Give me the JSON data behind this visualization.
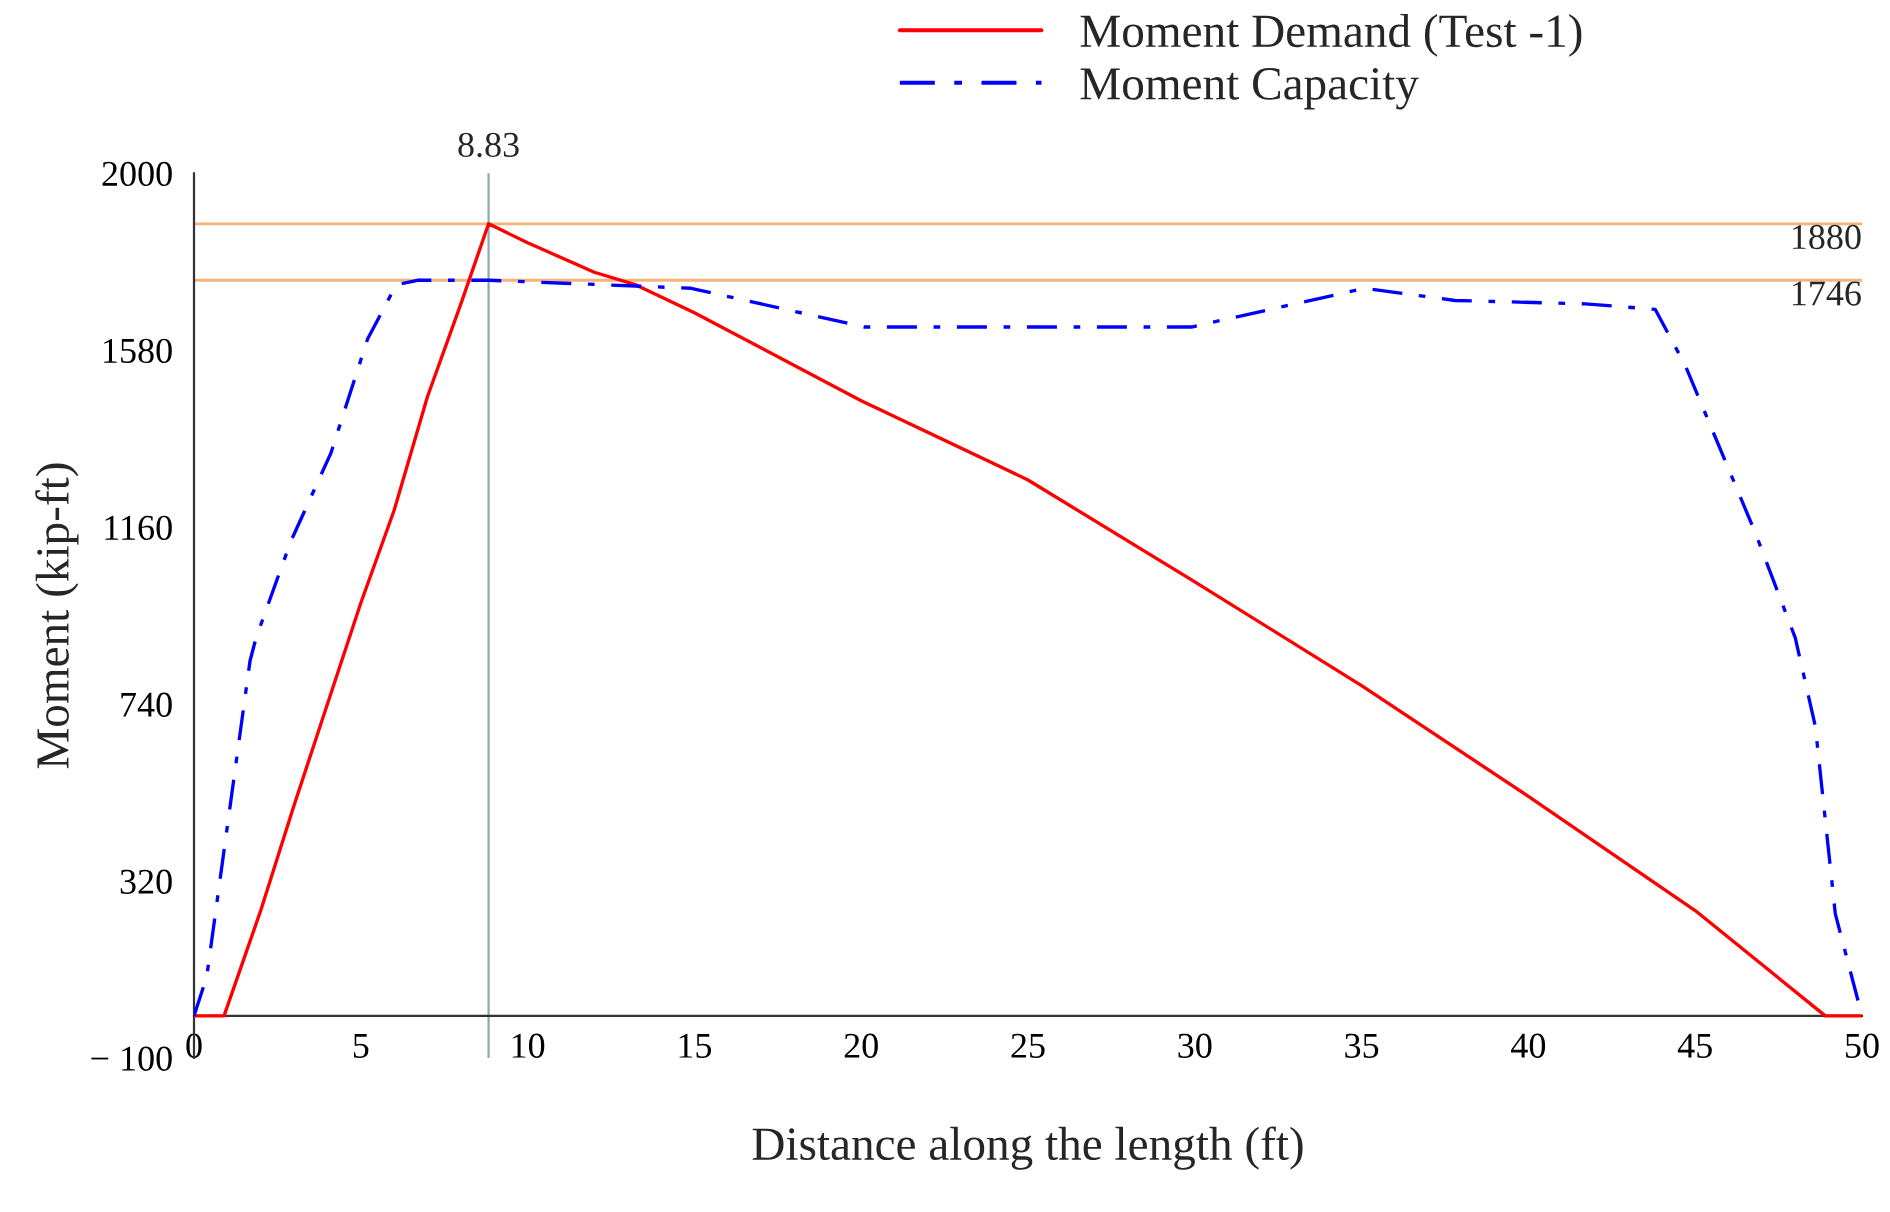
{
  "chart_data": {
    "type": "line",
    "xlabel": "Distance along the length (ft)",
    "ylabel": "Moment (kip-ft)",
    "xlim": [
      0,
      50
    ],
    "xticks": [
      0,
      5,
      10,
      15,
      20,
      25,
      30,
      35,
      40,
      45,
      50
    ],
    "ylim": [
      -100,
      2000
    ],
    "yticks": [
      {
        "value": -100,
        "label": "− 100"
      },
      320,
      740,
      1160,
      1580,
      2000
    ],
    "grid": false,
    "legend": "top right",
    "series": [
      {
        "name": "Moment Demand (Test -1)",
        "color": "#ff0000",
        "line_style": "solid",
        "x": [
          0,
          0.9,
          2,
          3,
          4,
          5,
          6,
          7,
          8,
          8.83,
          10,
          12,
          13.25,
          15,
          20,
          25,
          30,
          35,
          40,
          45,
          48.9,
          50
        ],
        "values": [
          0,
          0,
          250,
          500,
          740,
          980,
          1200,
          1470,
          1690,
          1880,
          1835,
          1765,
          1735,
          1669,
          1460,
          1272,
          1030,
          784,
          521,
          250,
          0,
          0
        ]
      },
      {
        "name": "Moment Capacity",
        "color": "#0000ff",
        "line_style": "dashdot",
        "x": [
          0,
          0.38,
          1.68,
          1.86,
          2.9,
          4.1,
          5.2,
          6.06,
          6.7,
          8.83,
          14.9,
          20.1,
          29.9,
          35.1,
          37.8,
          41.7,
          43.8,
          44.7,
          46.8,
          48,
          48.6,
          49.2,
          50
        ],
        "values": [
          0,
          92,
          843,
          897,
          1126,
          1335,
          1606,
          1735,
          1746,
          1746,
          1727,
          1635,
          1635,
          1727,
          1698,
          1690,
          1677,
          1544,
          1147,
          897,
          688,
          242,
          0
        ]
      }
    ],
    "ref_lines": [
      {
        "axis": "y",
        "value": 1880,
        "label": "1880",
        "color": "#f5b27a",
        "line_style": "solid"
      },
      {
        "axis": "y",
        "value": 1746,
        "label": "1746",
        "color": "#f5b27a",
        "line_style": "solid"
      },
      {
        "axis": "x",
        "value": 8.83,
        "label": "8.83",
        "color": "#8fa8a8",
        "line_style": "solid"
      }
    ]
  }
}
